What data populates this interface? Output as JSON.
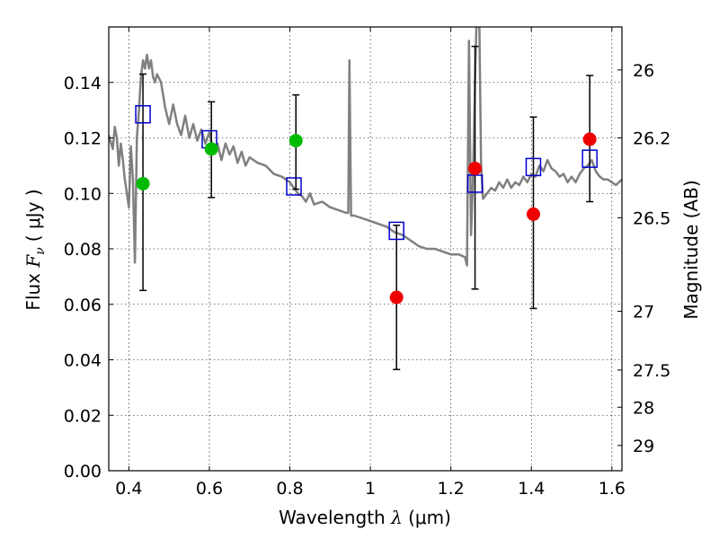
{
  "chart_data": {
    "type": "scatter",
    "xlabel_text": "Wavelength",
    "xlabel_symbol": "λ",
    "xlabel_unit": "(μm)",
    "ylabel_text": "Flux",
    "ylabel_symbol": "F",
    "ylabel_sub": "ν",
    "ylabel_unit": "( μJy )",
    "y2label": "Magnitude (AB)",
    "xlim": [
      0.35,
      1.625
    ],
    "ylim": [
      0.0,
      0.16
    ],
    "x_ticks": [
      {
        "value": 0.4,
        "label": "0.4"
      },
      {
        "value": 0.6,
        "label": "0.6"
      },
      {
        "value": 0.8,
        "label": "0.8"
      },
      {
        "value": 1.0,
        "label": "1"
      },
      {
        "value": 1.2,
        "label": "1.2"
      },
      {
        "value": 1.4,
        "label": "1.4"
      },
      {
        "value": 1.6,
        "label": "1.6"
      }
    ],
    "y_ticks": [
      {
        "value": 0.0,
        "label": "0.00"
      },
      {
        "value": 0.02,
        "label": "0.02"
      },
      {
        "value": 0.04,
        "label": "0.04"
      },
      {
        "value": 0.06,
        "label": "0.06"
      },
      {
        "value": 0.08,
        "label": "0.08"
      },
      {
        "value": 0.1,
        "label": "0.10"
      },
      {
        "value": 0.12,
        "label": "0.12"
      },
      {
        "value": 0.14,
        "label": "0.14"
      }
    ],
    "y2_ticks": [
      {
        "flux": 0.1445,
        "label": "26"
      },
      {
        "flux": 0.12,
        "label": "26.2"
      },
      {
        "flux": 0.0912,
        "label": "26.5"
      },
      {
        "flux": 0.0575,
        "label": "27"
      },
      {
        "flux": 0.0363,
        "label": "27.5"
      },
      {
        "flux": 0.0229,
        "label": "28"
      },
      {
        "flux": 0.0091,
        "label": "29"
      }
    ],
    "grid": true,
    "series": [
      {
        "name": "model spectrum",
        "style": "line",
        "color": "#808080",
        "points": [
          [
            0.35,
            0.121
          ],
          [
            0.36,
            0.116
          ],
          [
            0.365,
            0.124
          ],
          [
            0.37,
            0.12
          ],
          [
            0.375,
            0.11
          ],
          [
            0.38,
            0.118
          ],
          [
            0.385,
            0.112
          ],
          [
            0.39,
            0.105
          ],
          [
            0.395,
            0.1
          ],
          [
            0.4,
            0.095
          ],
          [
            0.405,
            0.117
          ],
          [
            0.41,
            0.105
          ],
          [
            0.415,
            0.075
          ],
          [
            0.42,
            0.12
          ],
          [
            0.425,
            0.13
          ],
          [
            0.43,
            0.142
          ],
          [
            0.435,
            0.148
          ],
          [
            0.44,
            0.145
          ],
          [
            0.445,
            0.15
          ],
          [
            0.45,
            0.145
          ],
          [
            0.455,
            0.148
          ],
          [
            0.46,
            0.142
          ],
          [
            0.465,
            0.14
          ],
          [
            0.47,
            0.143
          ],
          [
            0.48,
            0.14
          ],
          [
            0.49,
            0.131
          ],
          [
            0.5,
            0.125
          ],
          [
            0.51,
            0.132
          ],
          [
            0.52,
            0.125
          ],
          [
            0.53,
            0.121
          ],
          [
            0.54,
            0.128
          ],
          [
            0.55,
            0.12
          ],
          [
            0.56,
            0.125
          ],
          [
            0.57,
            0.119
          ],
          [
            0.58,
            0.123
          ],
          [
            0.59,
            0.118
          ],
          [
            0.6,
            0.122
          ],
          [
            0.61,
            0.115
          ],
          [
            0.62,
            0.118
          ],
          [
            0.63,
            0.112
          ],
          [
            0.64,
            0.118
          ],
          [
            0.65,
            0.114
          ],
          [
            0.66,
            0.117
          ],
          [
            0.67,
            0.111
          ],
          [
            0.68,
            0.115
          ],
          [
            0.69,
            0.11
          ],
          [
            0.7,
            0.113
          ],
          [
            0.72,
            0.111
          ],
          [
            0.74,
            0.11
          ],
          [
            0.76,
            0.107
          ],
          [
            0.78,
            0.106
          ],
          [
            0.8,
            0.104
          ],
          [
            0.81,
            0.102
          ],
          [
            0.82,
            0.1
          ],
          [
            0.83,
            0.099
          ],
          [
            0.84,
            0.097
          ],
          [
            0.85,
            0.1
          ],
          [
            0.86,
            0.096
          ],
          [
            0.88,
            0.097
          ],
          [
            0.9,
            0.095
          ],
          [
            0.92,
            0.094
          ],
          [
            0.94,
            0.093
          ],
          [
            0.945,
            0.093
          ],
          [
            0.948,
            0.148
          ],
          [
            0.952,
            0.092
          ],
          [
            0.96,
            0.092
          ],
          [
            0.98,
            0.091
          ],
          [
            1.0,
            0.09
          ],
          [
            1.02,
            0.089
          ],
          [
            1.04,
            0.088
          ],
          [
            1.06,
            0.086
          ],
          [
            1.08,
            0.085
          ],
          [
            1.1,
            0.083
          ],
          [
            1.12,
            0.081
          ],
          [
            1.14,
            0.08
          ],
          [
            1.16,
            0.08
          ],
          [
            1.18,
            0.079
          ],
          [
            1.2,
            0.078
          ],
          [
            1.22,
            0.078
          ],
          [
            1.235,
            0.077
          ],
          [
            1.24,
            0.074
          ],
          [
            1.245,
            0.155
          ],
          [
            1.25,
            0.085
          ],
          [
            1.255,
            0.105
          ],
          [
            1.26,
            0.14
          ],
          [
            1.265,
            0.17
          ],
          [
            1.27,
            0.17
          ],
          [
            1.275,
            0.11
          ],
          [
            1.28,
            0.098
          ],
          [
            1.29,
            0.1
          ],
          [
            1.3,
            0.102
          ],
          [
            1.31,
            0.101
          ],
          [
            1.32,
            0.104
          ],
          [
            1.33,
            0.102
          ],
          [
            1.34,
            0.105
          ],
          [
            1.35,
            0.102
          ],
          [
            1.36,
            0.104
          ],
          [
            1.37,
            0.103
          ],
          [
            1.38,
            0.106
          ],
          [
            1.39,
            0.104
          ],
          [
            1.4,
            0.107
          ],
          [
            1.41,
            0.106
          ],
          [
            1.42,
            0.11
          ],
          [
            1.43,
            0.108
          ],
          [
            1.44,
            0.112
          ],
          [
            1.45,
            0.109
          ],
          [
            1.46,
            0.108
          ],
          [
            1.47,
            0.106
          ],
          [
            1.48,
            0.107
          ],
          [
            1.49,
            0.104
          ],
          [
            1.5,
            0.106
          ],
          [
            1.51,
            0.104
          ],
          [
            1.52,
            0.107
          ],
          [
            1.53,
            0.109
          ],
          [
            1.54,
            0.11
          ],
          [
            1.55,
            0.112
          ],
          [
            1.56,
            0.108
          ],
          [
            1.57,
            0.106
          ],
          [
            1.58,
            0.105
          ],
          [
            1.59,
            0.105
          ],
          [
            1.6,
            0.104
          ],
          [
            1.61,
            0.103
          ],
          [
            1.625,
            0.105
          ]
        ]
      },
      {
        "name": "observed fluxes (green)",
        "style": "circle",
        "color": "#00bb00",
        "points": [
          [
            0.435,
            0.1035
          ],
          [
            0.605,
            0.116
          ],
          [
            0.815,
            0.119
          ]
        ]
      },
      {
        "name": "observed fluxes (red)",
        "style": "circle",
        "color": "#ee0000",
        "points": [
          [
            1.065,
            0.0625
          ],
          [
            1.26,
            0.109
          ],
          [
            1.405,
            0.0925
          ],
          [
            1.545,
            0.1195
          ]
        ]
      },
      {
        "name": "model band fluxes",
        "style": "open-square",
        "color": "#0000cc",
        "points": [
          [
            0.435,
            0.1285
          ],
          [
            0.6,
            0.1195
          ],
          [
            0.81,
            0.1025
          ],
          [
            1.065,
            0.0865
          ],
          [
            1.26,
            0.1035
          ],
          [
            1.405,
            0.1095
          ],
          [
            1.545,
            0.1125
          ]
        ]
      },
      {
        "name": "error bars",
        "style": "errorbar",
        "color": "#000000",
        "bars": [
          [
            0.435,
            0.065,
            0.143
          ],
          [
            0.605,
            0.0985,
            0.133
          ],
          [
            0.815,
            0.1015,
            0.1355
          ],
          [
            1.065,
            0.0365,
            0.0885
          ],
          [
            1.26,
            0.0655,
            0.153
          ],
          [
            1.405,
            0.0585,
            0.1275
          ],
          [
            1.545,
            0.097,
            0.1425
          ]
        ]
      }
    ]
  }
}
